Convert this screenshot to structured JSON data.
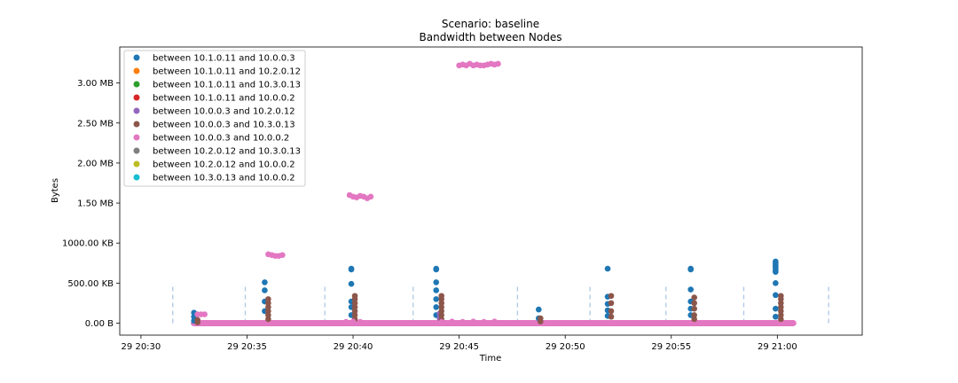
{
  "chart_data": {
    "type": "scatter",
    "title": "Scenario: baseline",
    "subtitle": "Bandwidth between Nodes",
    "xlabel": "Time",
    "ylabel": "Bytes",
    "xlim": [
      "29 20:29:00",
      "29 21:04:00"
    ],
    "ylim": [
      -150000,
      3450000
    ],
    "x_ticks": [
      {
        "t": "29 20:30:00",
        "label": "29 20:30"
      },
      {
        "t": "29 20:35:00",
        "label": "29 20:35"
      },
      {
        "t": "29 20:40:00",
        "label": "29 20:40"
      },
      {
        "t": "29 20:45:00",
        "label": "29 20:45"
      },
      {
        "t": "29 20:50:00",
        "label": "29 20:50"
      },
      {
        "t": "29 20:55:00",
        "label": "29 20:55"
      },
      {
        "t": "29 21:00:00",
        "label": "29 21:00"
      }
    ],
    "y_ticks": [
      {
        "v": 0,
        "label": "0.00 B"
      },
      {
        "v": 500000,
        "label": "500.00 KB"
      },
      {
        "v": 1000000,
        "label": "1000.00 KB"
      },
      {
        "v": 1500000,
        "label": "1.50 MB"
      },
      {
        "v": 2000000,
        "label": "2.00 MB"
      },
      {
        "v": 2500000,
        "label": "2.50 MB"
      },
      {
        "v": 3000000,
        "label": "3.00 MB"
      }
    ],
    "grid": false,
    "legend_position": "top-left",
    "markers": {
      "color": "#aec7e8",
      "style": "dashed",
      "y_range": [
        0,
        500000
      ],
      "times": [
        "29 20:31:30",
        "29 20:34:55",
        "29 20:38:40",
        "29 20:42:50",
        "29 20:47:45",
        "29 20:51:10",
        "29 20:54:45",
        "29 20:58:25",
        "29 21:02:25"
      ]
    },
    "series": [
      {
        "name": "between 10.1.0.11 and 10.0.0.3",
        "color": "#1f77b4",
        "band": {
          "start": "29 20:32:30",
          "end": "29 21:00:30",
          "value": 0
        },
        "points": [
          [
            "29 20:32:30",
            130000
          ],
          [
            "29 20:32:30",
            80000
          ],
          [
            "29 20:32:30",
            30000
          ],
          [
            "29 20:35:50",
            510000
          ],
          [
            "29 20:35:50",
            410000
          ],
          [
            "29 20:35:50",
            270000
          ],
          [
            "29 20:35:50",
            150000
          ],
          [
            "29 20:39:55",
            680000
          ],
          [
            "29 20:39:55",
            670000
          ],
          [
            "29 20:39:55",
            490000
          ],
          [
            "29 20:39:55",
            270000
          ],
          [
            "29 20:39:55",
            200000
          ],
          [
            "29 20:39:55",
            100000
          ],
          [
            "29 20:43:55",
            680000
          ],
          [
            "29 20:43:55",
            670000
          ],
          [
            "29 20:43:55",
            510000
          ],
          [
            "29 20:43:55",
            410000
          ],
          [
            "29 20:43:55",
            300000
          ],
          [
            "29 20:43:55",
            200000
          ],
          [
            "29 20:43:55",
            100000
          ],
          [
            "29 20:48:45",
            170000
          ],
          [
            "29 20:48:45",
            60000
          ],
          [
            "29 20:52:00",
            680000
          ],
          [
            "29 20:52:00",
            330000
          ],
          [
            "29 20:52:00",
            240000
          ],
          [
            "29 20:52:00",
            160000
          ],
          [
            "29 20:52:00",
            90000
          ],
          [
            "29 20:55:55",
            680000
          ],
          [
            "29 20:55:55",
            670000
          ],
          [
            "29 20:55:55",
            420000
          ],
          [
            "29 20:55:55",
            270000
          ],
          [
            "29 20:55:55",
            180000
          ],
          [
            "29 20:55:55",
            100000
          ],
          [
            "29 20:59:55",
            770000
          ],
          [
            "29 20:59:55",
            750000
          ],
          [
            "29 20:59:55",
            730000
          ],
          [
            "29 20:59:55",
            710000
          ],
          [
            "29 20:59:55",
            690000
          ],
          [
            "29 20:59:55",
            660000
          ],
          [
            "29 20:59:55",
            640000
          ],
          [
            "29 20:59:55",
            500000
          ],
          [
            "29 20:59:55",
            350000
          ],
          [
            "29 20:59:55",
            180000
          ],
          [
            "29 20:59:55",
            80000
          ]
        ]
      },
      {
        "name": "between 10.1.0.11 and 10.2.0.12",
        "color": "#ff7f0e",
        "points": []
      },
      {
        "name": "between 10.1.0.11 and 10.3.0.13",
        "color": "#2ca02c",
        "points": []
      },
      {
        "name": "between 10.1.0.11 and 10.0.0.2",
        "color": "#d62728",
        "points": []
      },
      {
        "name": "between 10.0.0.3 and 10.2.0.12",
        "color": "#9467bd",
        "points": [
          [
            "29 20:44:05",
            120000
          ],
          [
            "29 20:44:05",
            60000
          ]
        ]
      },
      {
        "name": "between 10.0.0.3 and 10.3.0.13",
        "color": "#8c564b",
        "points": [
          [
            "29 20:32:40",
            40000
          ],
          [
            "29 20:32:40",
            10000
          ],
          [
            "29 20:36:00",
            300000
          ],
          [
            "29 20:36:00",
            250000
          ],
          [
            "29 20:36:00",
            200000
          ],
          [
            "29 20:36:00",
            150000
          ],
          [
            "29 20:36:00",
            100000
          ],
          [
            "29 20:36:00",
            50000
          ],
          [
            "29 20:40:05",
            340000
          ],
          [
            "29 20:40:05",
            300000
          ],
          [
            "29 20:40:05",
            250000
          ],
          [
            "29 20:40:05",
            200000
          ],
          [
            "29 20:40:05",
            150000
          ],
          [
            "29 20:40:05",
            100000
          ],
          [
            "29 20:40:05",
            50000
          ],
          [
            "29 20:44:10",
            340000
          ],
          [
            "29 20:44:10",
            300000
          ],
          [
            "29 20:44:10",
            250000
          ],
          [
            "29 20:44:10",
            200000
          ],
          [
            "29 20:44:10",
            150000
          ],
          [
            "29 20:44:10",
            100000
          ],
          [
            "29 20:44:10",
            50000
          ],
          [
            "29 20:48:50",
            60000
          ],
          [
            "29 20:48:50",
            20000
          ],
          [
            "29 20:52:10",
            340000
          ],
          [
            "29 20:52:10",
            250000
          ],
          [
            "29 20:52:10",
            150000
          ],
          [
            "29 20:52:10",
            80000
          ],
          [
            "29 20:56:05",
            320000
          ],
          [
            "29 20:56:05",
            250000
          ],
          [
            "29 20:56:05",
            180000
          ],
          [
            "29 20:56:05",
            100000
          ],
          [
            "29 20:56:05",
            50000
          ],
          [
            "29 21:00:10",
            340000
          ],
          [
            "29 21:00:10",
            300000
          ],
          [
            "29 21:00:10",
            250000
          ],
          [
            "29 21:00:10",
            200000
          ],
          [
            "29 21:00:10",
            150000
          ],
          [
            "29 21:00:10",
            100000
          ],
          [
            "29 21:00:10",
            50000
          ]
        ]
      },
      {
        "name": "between 10.0.0.3 and 10.0.0.2",
        "color": "#e377c2",
        "band": {
          "start": "29 20:32:30",
          "end": "29 21:00:45",
          "value": 0
        },
        "points": [
          [
            "29 20:32:40",
            110000
          ],
          [
            "29 20:32:50",
            110000
          ],
          [
            "29 20:33:00",
            110000
          ],
          [
            "29 20:36:00",
            860000
          ],
          [
            "29 20:36:10",
            850000
          ],
          [
            "29 20:36:20",
            840000
          ],
          [
            "29 20:36:30",
            840000
          ],
          [
            "29 20:36:40",
            850000
          ],
          [
            "29 20:39:50",
            1600000
          ],
          [
            "29 20:40:00",
            1580000
          ],
          [
            "29 20:40:10",
            1570000
          ],
          [
            "29 20:40:20",
            1590000
          ],
          [
            "29 20:40:30",
            1580000
          ],
          [
            "29 20:40:40",
            1560000
          ],
          [
            "29 20:40:50",
            1580000
          ],
          [
            "29 20:45:00",
            3220000
          ],
          [
            "29 20:45:10",
            3230000
          ],
          [
            "29 20:45:20",
            3220000
          ],
          [
            "29 20:45:30",
            3240000
          ],
          [
            "29 20:45:40",
            3220000
          ],
          [
            "29 20:45:50",
            3230000
          ],
          [
            "29 20:46:00",
            3220000
          ],
          [
            "29 20:46:10",
            3220000
          ],
          [
            "29 20:46:20",
            3230000
          ],
          [
            "29 20:46:30",
            3240000
          ],
          [
            "29 20:46:40",
            3230000
          ],
          [
            "29 20:46:50",
            3240000
          ],
          [
            "29 20:39:40",
            15000
          ],
          [
            "29 20:40:00",
            20000
          ],
          [
            "29 20:40:20",
            15000
          ],
          [
            "29 20:44:10",
            15000
          ],
          [
            "29 20:44:40",
            20000
          ],
          [
            "29 20:45:10",
            15000
          ],
          [
            "29 20:45:40",
            20000
          ],
          [
            "29 20:46:10",
            15000
          ],
          [
            "29 20:46:40",
            20000
          ]
        ]
      },
      {
        "name": "between 10.2.0.12 and 10.3.0.13",
        "color": "#7f7f7f",
        "points": []
      },
      {
        "name": "between 10.2.0.12 and 10.0.0.2",
        "color": "#bcbd22",
        "points": []
      },
      {
        "name": "between 10.3.0.13 and 10.0.0.2",
        "color": "#17becf",
        "points": []
      }
    ]
  }
}
